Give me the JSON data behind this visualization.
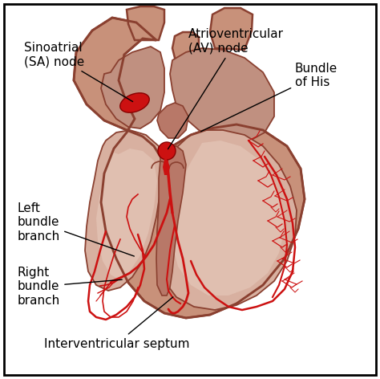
{
  "bg_color": "#ffffff",
  "border_color": "#000000",
  "heart_outer_fill": "#c8917a",
  "heart_wall_fill": "#b87060",
  "atrium_fill": "#c8917a",
  "ventricle_fill": "#d4a898",
  "septum_fill": "#b07060",
  "inner_wall_fill": "#e8c0a8",
  "red": "#cc1111",
  "dark_red": "#990000",
  "label_color": "#000000",
  "arrow_color": "#000000",
  "outline_color": "#8a4030",
  "fontsize": 11,
  "labels": {
    "sa_node": "Sinoatrial\n(SA) node",
    "av_node": "Atrioventricular\n(AV) node",
    "bundle_his": "Bundle\nof His",
    "left_bundle": "Left\nbundle\nbranch",
    "right_bundle": "Right\nbundle\nbranch",
    "iv_septum": "Interventricular septum"
  }
}
